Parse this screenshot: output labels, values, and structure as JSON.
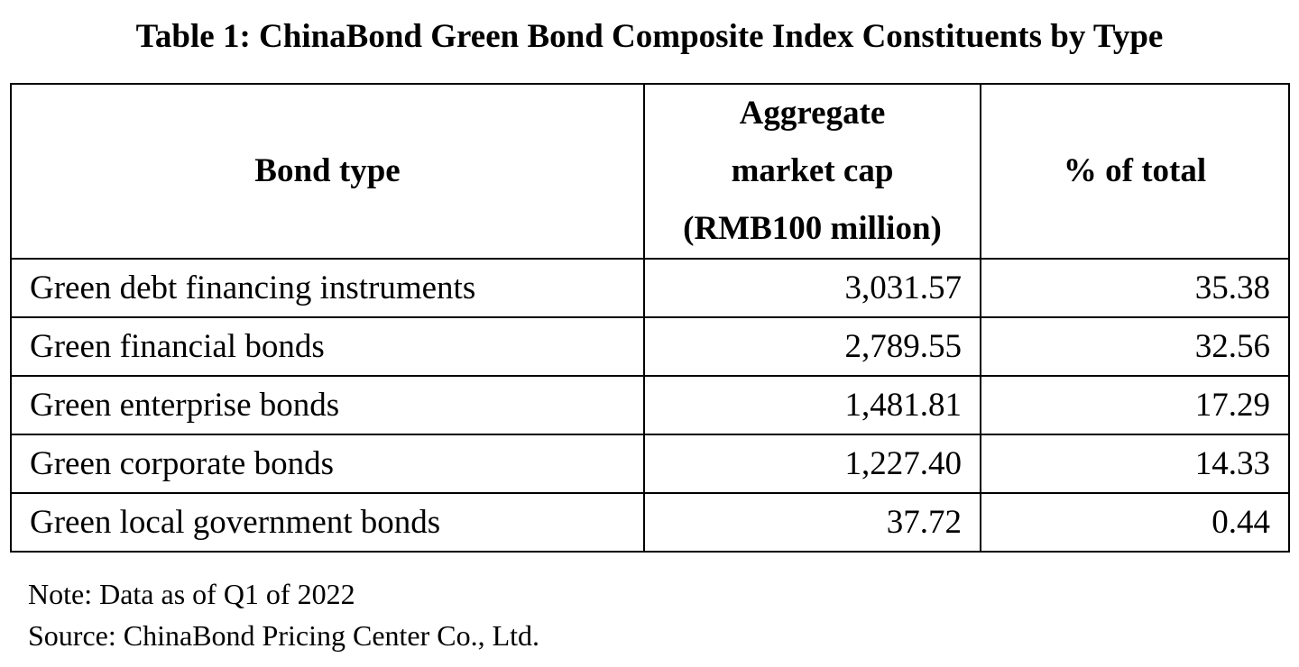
{
  "title": "Table 1: ChinaBond Green Bond Composite Index Constituents by Type",
  "table": {
    "headers": {
      "bond_type": "Bond type",
      "market_cap": [
        "Aggregate",
        "market cap",
        "(RMB100 million)"
      ],
      "pct_total": "% of total"
    },
    "rows": [
      {
        "bond_type": "Green debt financing instruments",
        "market_cap": "3,031.57",
        "pct_total": "35.38"
      },
      {
        "bond_type": "Green financial bonds",
        "market_cap": "2,789.55",
        "pct_total": "32.56"
      },
      {
        "bond_type": "Green enterprise bonds",
        "market_cap": "1,481.81",
        "pct_total": "17.29"
      },
      {
        "bond_type": "Green corporate bonds",
        "market_cap": "1,227.40",
        "pct_total": "14.33"
      },
      {
        "bond_type": "Green local government bonds",
        "market_cap": "37.72",
        "pct_total": "0.44"
      }
    ]
  },
  "note": "Note: Data as of Q1 of 2022",
  "source": "Source: ChinaBond Pricing Center Co., Ltd."
}
